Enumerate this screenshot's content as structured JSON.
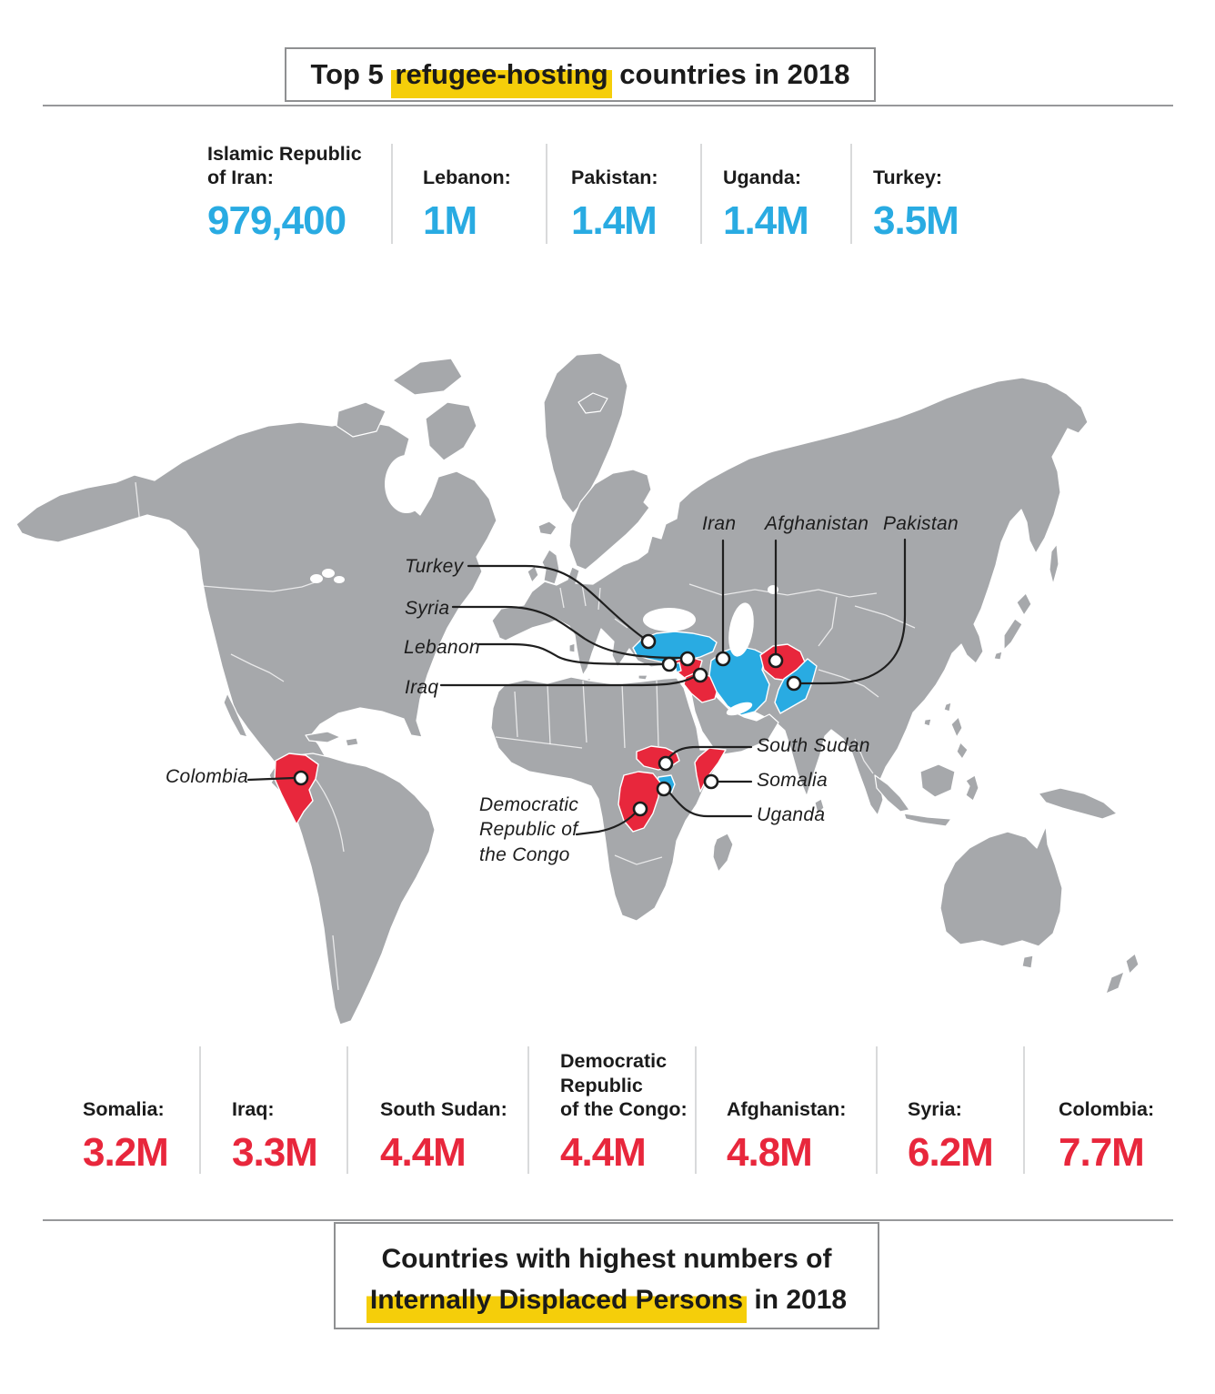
{
  "colors": {
    "refugee_blue": "#29ABE2",
    "idp_red": "#E8273C",
    "highlight_yellow": "#F5CE0A",
    "map_gray": "#A6A8AB",
    "text": "#1B1B1B"
  },
  "top_section": {
    "title": {
      "prefix": "Top 5 ",
      "highlight": "refugee-hosting",
      "suffix": " countries in 2018"
    },
    "stats": [
      {
        "country_lines": [
          "Islamic Republic",
          "of Iran:"
        ],
        "value": "979,400"
      },
      {
        "country_lines": [
          "Lebanon:"
        ],
        "value": "1M"
      },
      {
        "country_lines": [
          "Pakistan:"
        ],
        "value": "1.4M"
      },
      {
        "country_lines": [
          "Uganda:"
        ],
        "value": "1.4M"
      },
      {
        "country_lines": [
          "Turkey:"
        ],
        "value": "3.5M"
      }
    ]
  },
  "map": {
    "blue_countries": [
      "Turkey",
      "Lebanon",
      "Iran",
      "Pakistan",
      "Uganda"
    ],
    "red_countries": [
      "Syria",
      "Iraq",
      "Afghanistan",
      "Colombia",
      "South Sudan",
      "Somalia",
      "Democratic Republic of the Congo"
    ],
    "labels": [
      {
        "id": "turkey",
        "lines": [
          "Turkey"
        ]
      },
      {
        "id": "syria",
        "lines": [
          "Syria"
        ]
      },
      {
        "id": "lebanon",
        "lines": [
          "Lebanon"
        ]
      },
      {
        "id": "iraq",
        "lines": [
          "Iraq"
        ]
      },
      {
        "id": "iran",
        "lines": [
          "Iran"
        ]
      },
      {
        "id": "afghanistan",
        "lines": [
          "Afghanistan"
        ]
      },
      {
        "id": "pakistan",
        "lines": [
          "Pakistan"
        ]
      },
      {
        "id": "colombia",
        "lines": [
          "Colombia"
        ]
      },
      {
        "id": "south-sudan",
        "lines": [
          "South Sudan"
        ]
      },
      {
        "id": "somalia",
        "lines": [
          "Somalia"
        ]
      },
      {
        "id": "uganda",
        "lines": [
          "Uganda"
        ]
      },
      {
        "id": "drc",
        "lines": [
          "Democratic",
          "Republic of",
          "the Congo"
        ]
      }
    ]
  },
  "bottom_section": {
    "stats": [
      {
        "country_lines": [
          "Somalia:"
        ],
        "value": "3.2M"
      },
      {
        "country_lines": [
          "Iraq:"
        ],
        "value": "3.3M"
      },
      {
        "country_lines": [
          "South Sudan:"
        ],
        "value": "4.4M"
      },
      {
        "country_lines": [
          "Democratic",
          "Republic",
          "of the Congo:"
        ],
        "value": "4.4M"
      },
      {
        "country_lines": [
          "Afghanistan:"
        ],
        "value": "4.8M"
      },
      {
        "country_lines": [
          "Syria:"
        ],
        "value": "6.2M"
      },
      {
        "country_lines": [
          "Colombia:"
        ],
        "value": "7.7M"
      }
    ],
    "title": {
      "line1": "Countries with highest numbers of",
      "highlight": "Internally Displaced Persons",
      "suffix": " in 2018"
    }
  },
  "chart_data": [
    {
      "type": "table",
      "title": "Top 5 refugee-hosting countries in 2018",
      "categories": [
        "Islamic Republic of Iran",
        "Lebanon",
        "Pakistan",
        "Uganda",
        "Turkey"
      ],
      "values": [
        979400,
        1000000,
        1400000,
        1400000,
        3500000
      ],
      "value_labels": [
        "979,400",
        "1M",
        "1.4M",
        "1.4M",
        "3.5M"
      ],
      "color": "#29ABE2"
    },
    {
      "type": "table",
      "title": "Countries with highest numbers of Internally Displaced Persons in 2018",
      "categories": [
        "Somalia",
        "Iraq",
        "South Sudan",
        "Democratic Republic of the Congo",
        "Afghanistan",
        "Syria",
        "Colombia"
      ],
      "values": [
        3200000,
        3300000,
        4400000,
        4400000,
        4800000,
        6200000,
        7700000
      ],
      "value_labels": [
        "3.2M",
        "3.3M",
        "4.4M",
        "4.4M",
        "4.8M",
        "6.2M",
        "7.7M"
      ],
      "color": "#E8273C"
    }
  ]
}
